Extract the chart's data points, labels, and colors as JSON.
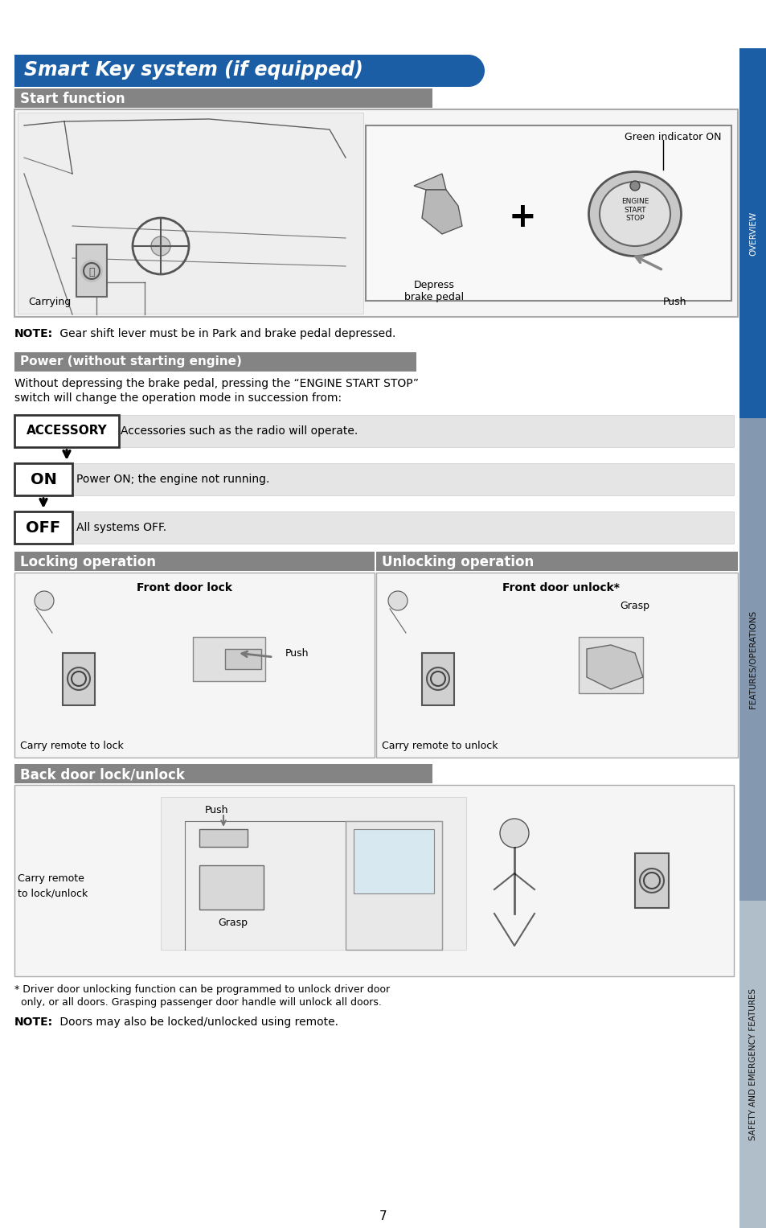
{
  "title": "Smart Key system (if equipped)",
  "section1_title": "Start function",
  "note1_bold": "NOTE:",
  "note1_rest": " Gear shift lever must be in Park and brake pedal depressed.",
  "section2_title": "Power (without starting engine)",
  "power_desc_line1": "Without depressing the brake pedal, pressing the “ENGINE START STOP”",
  "power_desc_line2": "switch will change the operation mode in succession from:",
  "accessory_label": "ACCESSORY",
  "accessory_desc": "Accessories such as the radio will operate.",
  "on_label": "ON",
  "on_desc": "Power ON; the engine not running.",
  "off_label": "OFF",
  "off_desc": "All systems OFF.",
  "green_indicator": "Green indicator ON",
  "depress_brake": "Depress\nbrake pedal",
  "push_label": "Push",
  "carrying_label": "Carrying",
  "section3_left": "Locking operation",
  "section3_right": "Unlocking operation",
  "front_door_lock": "Front door lock",
  "front_door_unlock": "Front door unlock*",
  "grasp_label": "Grasp",
  "push_lock_label": "Push",
  "carry_lock": "Carry remote to lock",
  "carry_unlock": "Carry remote to unlock",
  "section4_title": "Back door lock/unlock",
  "push_back": "Push",
  "grasp_back": "Grasp",
  "carry_lock_unlock_line1": "Carry remote",
  "carry_lock_unlock_line2": "to lock/unlock",
  "footnote_line1": "* Driver door unlocking function can be programmed to unlock driver door",
  "footnote_line2": "  only, or all doors. Grasping passenger door handle will unlock all doors.",
  "note2_bold": "NOTE:",
  "note2_rest": " Doors may also be locked/unlocked using remote.",
  "page_num": "7",
  "blue_title_bg": "#1b5ea6",
  "gray_section_bg": "#848484",
  "sidebar_blue": "#1b5ea6",
  "sidebar_mid": "#8498b0",
  "sidebar_light": "#b0beca",
  "row_bg": "#e5e5e5",
  "white": "#ffffff",
  "black": "#000000",
  "img_box_bg": "#f5f5f5",
  "img_box_border": "#aaaaaa"
}
